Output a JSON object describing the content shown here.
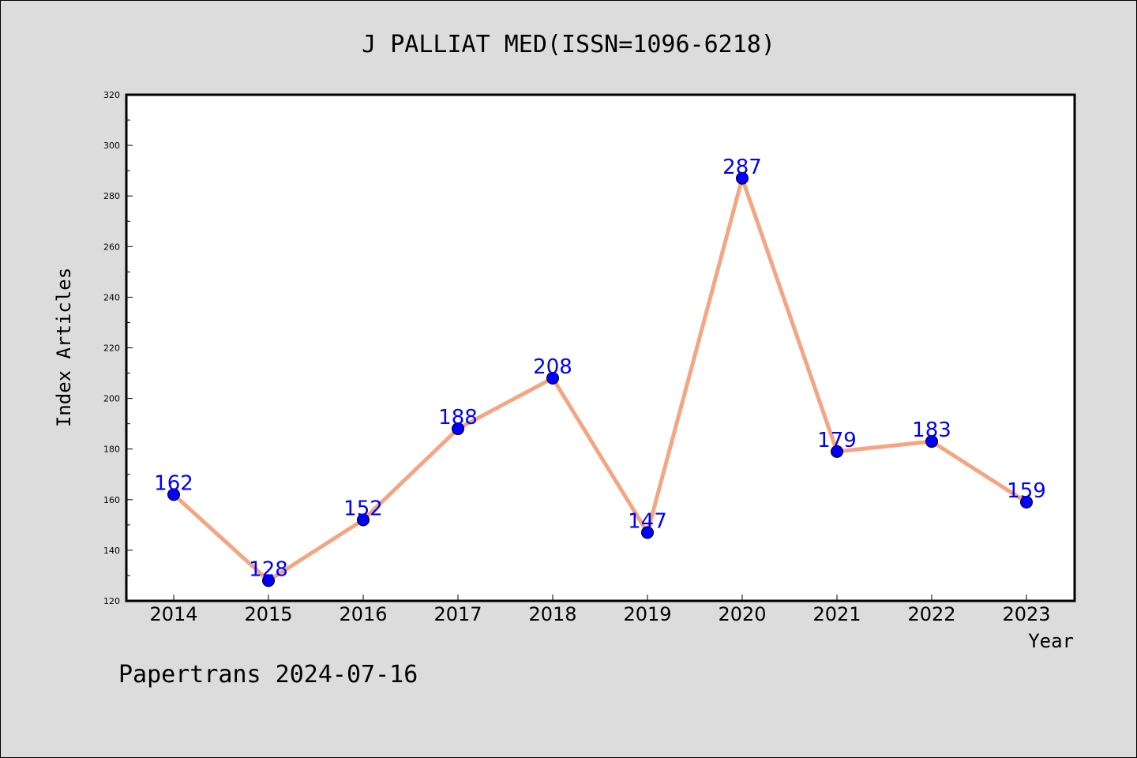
{
  "chart_data": {
    "type": "line",
    "title": "J PALLIAT MED(ISSN=1096-6218)",
    "xlabel": "Year",
    "ylabel": "Index Articles",
    "categories": [
      "2014",
      "2015",
      "2016",
      "2017",
      "2018",
      "2019",
      "2020",
      "2021",
      "2022",
      "2023"
    ],
    "series": [
      {
        "values": [
          162,
          128,
          152,
          188,
          208,
          147,
          287,
          179,
          183,
          159
        ]
      }
    ],
    "ylim": [
      120,
      320
    ],
    "yticks": [
      120,
      140,
      160,
      180,
      200,
      220,
      240,
      260,
      280,
      300,
      320
    ],
    "grid": false,
    "line_color": "#f4a582",
    "marker_color": "#0000ff",
    "label_color": "#0000ff"
  },
  "footer": "Papertrans 2024-07-16"
}
